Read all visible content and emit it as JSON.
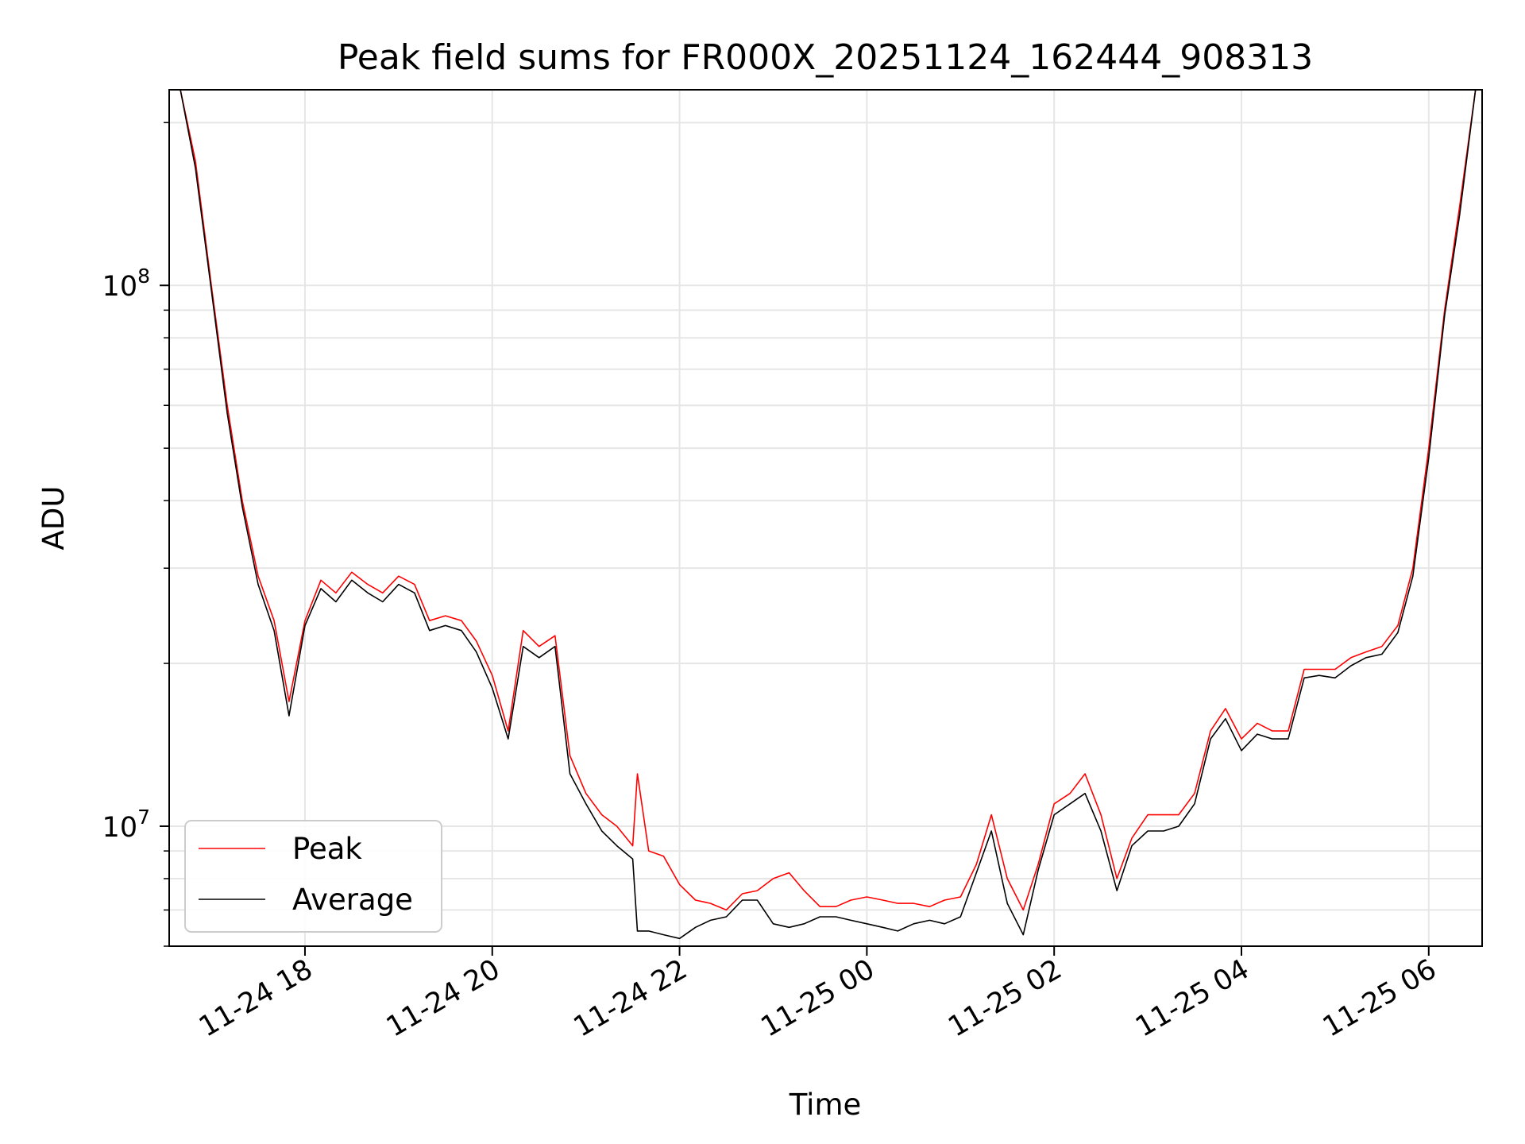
{
  "chart_data": {
    "type": "line",
    "title": "Peak field sums for FR000X_20251124_162444_908313",
    "xlabel": "Time",
    "ylabel": "ADU",
    "x_ticks": [
      "11-24 18",
      "11-24 20",
      "11-24 22",
      "11-25 00",
      "11-25 02",
      "11-25 04",
      "11-25 06"
    ],
    "y_ticks": [
      {
        "value": 10000000,
        "base": "10",
        "exp": "7"
      },
      {
        "value": 100000000,
        "base": "10",
        "exp": "8"
      }
    ],
    "y_scale": "log",
    "x_unit_note": "x values are hours relative to 11-24 00:00 on the date axis",
    "xlim": [
      16.55,
      30.57
    ],
    "ylim": [
      6000000,
      230000000
    ],
    "grid": true,
    "legend_position": "lower-left",
    "series": [
      {
        "name": "Peak",
        "color": "#ff0000",
        "x": [
          16.67,
          16.83,
          17.0,
          17.17,
          17.33,
          17.5,
          17.67,
          17.83,
          18.0,
          18.17,
          18.33,
          18.5,
          18.67,
          18.83,
          19.0,
          19.17,
          19.33,
          19.5,
          19.67,
          19.83,
          20.0,
          20.17,
          20.33,
          20.5,
          20.67,
          20.83,
          21.0,
          21.17,
          21.33,
          21.5,
          21.55,
          21.67,
          21.83,
          22.0,
          22.17,
          22.33,
          22.5,
          22.67,
          22.83,
          23.0,
          23.17,
          23.33,
          23.5,
          23.67,
          23.83,
          24.0,
          24.17,
          24.33,
          24.5,
          24.67,
          24.83,
          25.0,
          25.17,
          25.33,
          25.5,
          25.67,
          25.83,
          26.0,
          26.17,
          26.33,
          26.5,
          26.67,
          26.83,
          27.0,
          27.17,
          27.33,
          27.5,
          27.67,
          27.83,
          28.0,
          28.17,
          28.33,
          28.5,
          28.67,
          28.83,
          29.0,
          29.17,
          29.33,
          29.5,
          29.67,
          29.83,
          30.0,
          30.17,
          30.33,
          30.5
        ],
        "y": [
          230000000,
          170000000,
          100000000,
          60000000,
          40000000,
          29000000,
          24000000,
          17000000,
          24000000,
          28500000,
          27000000,
          29500000,
          28000000,
          27000000,
          29000000,
          28000000,
          24000000,
          24500000,
          24000000,
          22000000,
          19000000,
          15000000,
          23000000,
          21500000,
          22500000,
          13500000,
          11500000,
          10500000,
          10000000,
          9200000,
          12500000,
          9000000,
          8800000,
          7800000,
          7300000,
          7200000,
          7000000,
          7500000,
          7600000,
          8000000,
          8200000,
          7600000,
          7100000,
          7100000,
          7300000,
          7400000,
          7300000,
          7200000,
          7200000,
          7100000,
          7300000,
          7400000,
          8500000,
          10500000,
          8000000,
          7000000,
          8500000,
          11000000,
          11500000,
          12500000,
          10500000,
          8000000,
          9500000,
          10500000,
          10500000,
          10500000,
          11500000,
          15000000,
          16500000,
          14500000,
          15500000,
          15000000,
          15000000,
          19500000,
          19500000,
          19500000,
          20500000,
          21000000,
          21500000,
          23500000,
          30000000,
          50000000,
          90000000,
          140000000,
          230000000
        ]
      },
      {
        "name": "Average",
        "color": "#000000",
        "x": [
          16.67,
          16.83,
          17.0,
          17.17,
          17.33,
          17.5,
          17.67,
          17.83,
          18.0,
          18.17,
          18.33,
          18.5,
          18.67,
          18.83,
          19.0,
          19.17,
          19.33,
          19.5,
          19.67,
          19.83,
          20.0,
          20.17,
          20.33,
          20.5,
          20.67,
          20.83,
          21.0,
          21.17,
          21.33,
          21.5,
          21.55,
          21.67,
          21.83,
          22.0,
          22.17,
          22.33,
          22.5,
          22.67,
          22.83,
          23.0,
          23.17,
          23.33,
          23.5,
          23.67,
          23.83,
          24.0,
          24.17,
          24.33,
          24.5,
          24.67,
          24.83,
          25.0,
          25.17,
          25.33,
          25.5,
          25.67,
          25.83,
          26.0,
          26.17,
          26.33,
          26.5,
          26.67,
          26.83,
          27.0,
          27.17,
          27.33,
          27.5,
          27.67,
          27.83,
          28.0,
          28.17,
          28.33,
          28.5,
          28.67,
          28.83,
          29.0,
          29.17,
          29.33,
          29.5,
          29.67,
          29.83,
          30.0,
          30.17,
          30.33,
          30.5
        ],
        "y": [
          230000000,
          165000000,
          98000000,
          58000000,
          39000000,
          28000000,
          23000000,
          16000000,
          23500000,
          27500000,
          26000000,
          28500000,
          27000000,
          26000000,
          28000000,
          27000000,
          23000000,
          23500000,
          23000000,
          21000000,
          18000000,
          14500000,
          21500000,
          20500000,
          21500000,
          12500000,
          11000000,
          9800000,
          9200000,
          8700000,
          6400000,
          6400000,
          6300000,
          6200000,
          6500000,
          6700000,
          6800000,
          7300000,
          7300000,
          6600000,
          6500000,
          6600000,
          6800000,
          6800000,
          6700000,
          6600000,
          6500000,
          6400000,
          6600000,
          6700000,
          6600000,
          6800000,
          8200000,
          9800000,
          7200000,
          6300000,
          8300000,
          10500000,
          11000000,
          11500000,
          9800000,
          7600000,
          9200000,
          9800000,
          9800000,
          10000000,
          11000000,
          14500000,
          15800000,
          13800000,
          14800000,
          14500000,
          14500000,
          18800000,
          19000000,
          18800000,
          19800000,
          20500000,
          20800000,
          22800000,
          29000000,
          48000000,
          88000000,
          135000000,
          230000000
        ]
      }
    ]
  }
}
